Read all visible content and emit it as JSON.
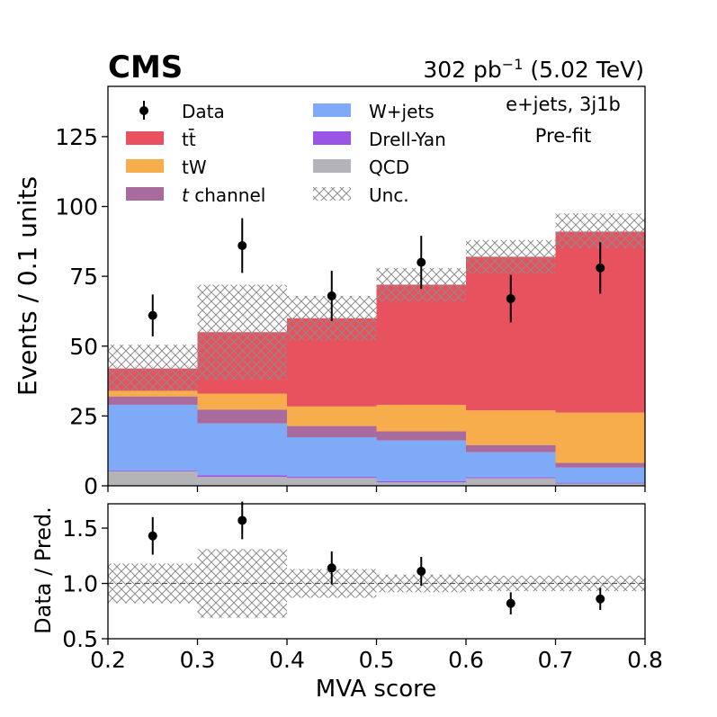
{
  "chart_data": [
    {
      "type": "bar",
      "stacked": true,
      "experiment": "CMS",
      "lumi_text": "302 pb",
      "lumi_exp": "−1",
      "energy_text": "(5.02 TeV)",
      "channel": "e+jets, 3j1b",
      "stage": "Pre-fit",
      "ylabel": "Events / 0.1 units",
      "ylim": [
        0,
        143
      ],
      "yticks": [
        0,
        25,
        50,
        75,
        100,
        125
      ],
      "xlim": [
        0.2,
        0.8
      ],
      "bin_edges": [
        0.2,
        0.3,
        0.4,
        0.5,
        0.6,
        0.7,
        0.8
      ],
      "series": [
        {
          "name": "QCD",
          "color": "#b4b4b8",
          "values": [
            5.2,
            3.2,
            2.8,
            1.2,
            2.7,
            0.8
          ]
        },
        {
          "name": "Drell-Yan",
          "color": "#9a55e6",
          "values": [
            0.3,
            0.6,
            0.4,
            0.5,
            0.4,
            0.3
          ]
        },
        {
          "name": "W+jets",
          "color": "#7eaaf8",
          "values": [
            23.5,
            18.5,
            14.2,
            14.5,
            8.9,
            5.4
          ]
        },
        {
          "name": "t channel",
          "color": "#a96b9e",
          "values": [
            3.0,
            5.0,
            4.0,
            3.3,
            2.6,
            1.7
          ]
        },
        {
          "name": "tW",
          "color": "#f8ad4c",
          "values": [
            2.0,
            5.7,
            7.0,
            9.5,
            12.4,
            18.0
          ]
        },
        {
          "name": "tt̄",
          "color": "#e8525f",
          "values": [
            8.0,
            22.0,
            31.6,
            43.0,
            55.0,
            64.8
          ]
        }
      ],
      "total": [
        42,
        55,
        60,
        72,
        82,
        91
      ],
      "unc_low": [
        34,
        38,
        52,
        66,
        76,
        85
      ],
      "unc_high": [
        50.5,
        72,
        68,
        78,
        88,
        97.5
      ],
      "data": {
        "x": [
          0.25,
          0.35,
          0.45,
          0.55,
          0.65,
          0.75
        ],
        "y": [
          61,
          86,
          68,
          80,
          67,
          78
        ],
        "err": [
          7.5,
          9.8,
          9.0,
          9.5,
          8.5,
          9.2
        ]
      },
      "legend": {
        "placement": "top-left",
        "entries": [
          {
            "label": "Data",
            "kind": "marker"
          },
          {
            "label": "tt̄",
            "kind": "patch",
            "color": "#e8525f"
          },
          {
            "label": "tW",
            "kind": "patch",
            "color": "#f8ad4c"
          },
          {
            "label": "t channel",
            "kind": "patch",
            "color": "#a96b9e",
            "italic_prefix": "t"
          },
          {
            "label": "W+jets",
            "kind": "patch",
            "color": "#7eaaf8"
          },
          {
            "label": "Drell-Yan",
            "kind": "patch",
            "color": "#9a55e6"
          },
          {
            "label": "QCD",
            "kind": "patch",
            "color": "#b4b4b8"
          },
          {
            "label": "Unc.",
            "kind": "hatch"
          }
        ]
      }
    },
    {
      "type": "scatter",
      "ylabel": "Data / Pred.",
      "xlabel": "MVA score",
      "xlim": [
        0.2,
        0.8
      ],
      "ylim": [
        0.5,
        1.72
      ],
      "yticks": [
        0.5,
        1.0,
        1.5
      ],
      "xticks": [
        0.2,
        0.3,
        0.4,
        0.5,
        0.6,
        0.7,
        0.8
      ],
      "reference_line": 1.0,
      "bin_edges": [
        0.2,
        0.3,
        0.4,
        0.5,
        0.6,
        0.7,
        0.8
      ],
      "unc_low": [
        0.82,
        0.69,
        0.87,
        0.92,
        0.93,
        0.93
      ],
      "unc_high": [
        1.18,
        1.31,
        1.13,
        1.08,
        1.07,
        1.07
      ],
      "x": [
        0.25,
        0.35,
        0.45,
        0.55,
        0.65,
        0.75
      ],
      "y": [
        1.43,
        1.57,
        1.14,
        1.11,
        0.82,
        0.86
      ],
      "err": [
        0.17,
        0.17,
        0.15,
        0.13,
        0.1,
        0.1
      ]
    }
  ]
}
